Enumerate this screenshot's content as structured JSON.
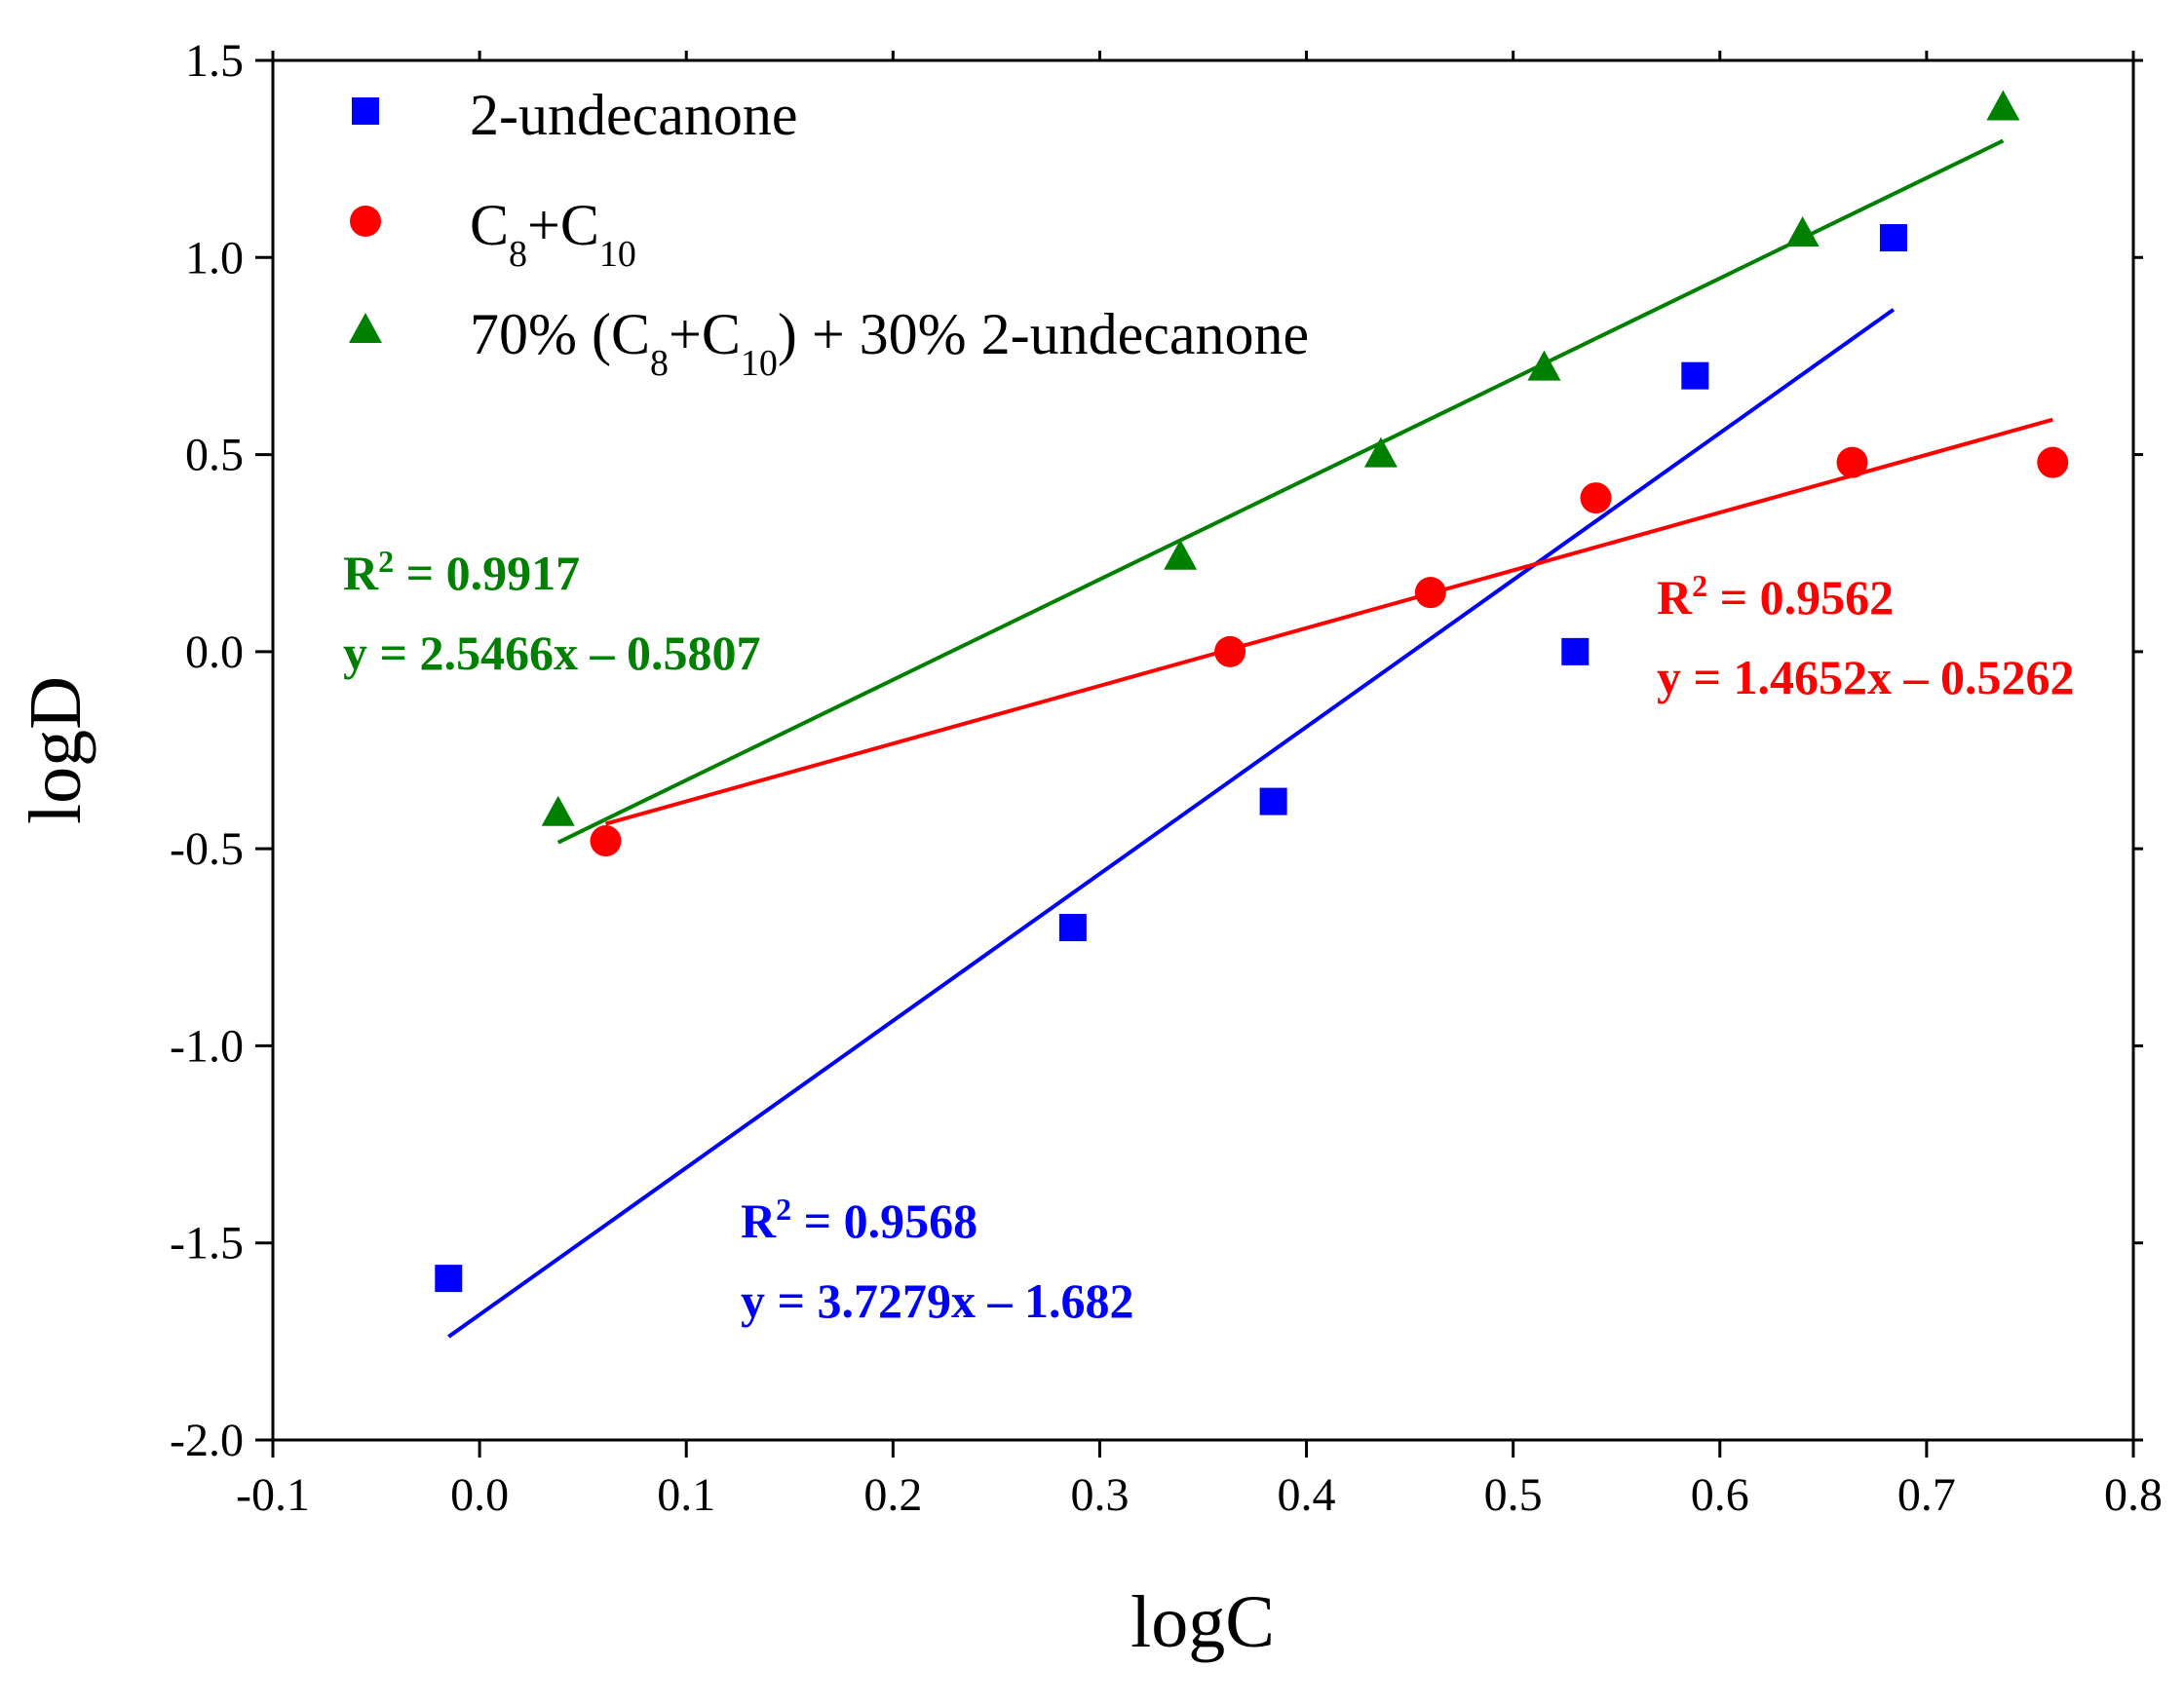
{
  "chart_data": {
    "type": "scatter",
    "title": "",
    "xlabel": "logC",
    "ylabel": "logD",
    "xlim": [
      -0.1,
      0.8
    ],
    "ylim": [
      -2.0,
      1.5
    ],
    "xticks": [
      "-0.1",
      "0.0",
      "0.1",
      "0.2",
      "0.3",
      "0.4",
      "0.5",
      "0.6",
      "0.7",
      "0.8"
    ],
    "yticks": [
      "-2.0",
      "-1.5",
      "-1.0",
      "-0.5",
      "0.0",
      "0.5",
      "1.0",
      "1.5"
    ],
    "grid": false,
    "legend_position": "top-left",
    "series": [
      {
        "name": "2-undecanone",
        "marker": "square",
        "color": "#0000ff",
        "x": [
          -0.015,
          0.287,
          0.384,
          0.53,
          0.588,
          0.684
        ],
        "y": [
          -1.59,
          -0.7,
          -0.38,
          0.0,
          0.7,
          1.05
        ],
        "fit": {
          "slope": 3.7279,
          "intercept": -1.682,
          "x_range": [
            -0.015,
            0.684
          ]
        },
        "annotation": {
          "r2_prefix": "R",
          "r2_sup": "2",
          "r2_value": " = 0.9568",
          "equation": "y = 3.7279x – 1.682"
        }
      },
      {
        "name": "C8+C10",
        "marker": "circle",
        "color": "#ff0000",
        "x": [
          0.061,
          0.363,
          0.46,
          0.54,
          0.664,
          0.761
        ],
        "y": [
          -0.48,
          0.0,
          0.15,
          0.39,
          0.48,
          0.48
        ],
        "fit": {
          "slope": 1.4652,
          "intercept": -0.5262,
          "x_range": [
            0.061,
            0.761
          ]
        },
        "annotation": {
          "r2_prefix": "R",
          "r2_sup": "2",
          "r2_value": " = 0.9562",
          "equation": "y = 1.4652x – 0.5262"
        }
      },
      {
        "name": "70% (C8+C10) + 30% 2-undecanone",
        "marker": "triangle",
        "color": "#008000",
        "x": [
          0.038,
          0.339,
          0.436,
          0.515,
          0.64,
          0.737
        ],
        "y": [
          -0.41,
          0.24,
          0.5,
          0.72,
          1.06,
          1.38
        ],
        "fit": {
          "slope": 2.5466,
          "intercept": -0.5807,
          "x_range": [
            0.038,
            0.737
          ]
        },
        "annotation": {
          "r2_prefix": "R",
          "r2_sup": "2",
          "r2_value": " = 0.9917",
          "equation": "y = 2.5466x – 0.5807"
        }
      }
    ],
    "legend": [
      {
        "parts": [
          {
            "t": "2-undecanone"
          }
        ]
      },
      {
        "parts": [
          {
            "t": "C"
          },
          {
            "t": "8",
            "sub": true
          },
          {
            "t": "+C"
          },
          {
            "t": "10",
            "sub": true
          }
        ]
      },
      {
        "parts": [
          {
            "t": "70% (C"
          },
          {
            "t": "8",
            "sub": true
          },
          {
            "t": "+C"
          },
          {
            "t": "10",
            "sub": true
          },
          {
            "t": ") + 30% 2-undecanone"
          }
        ]
      }
    ]
  }
}
